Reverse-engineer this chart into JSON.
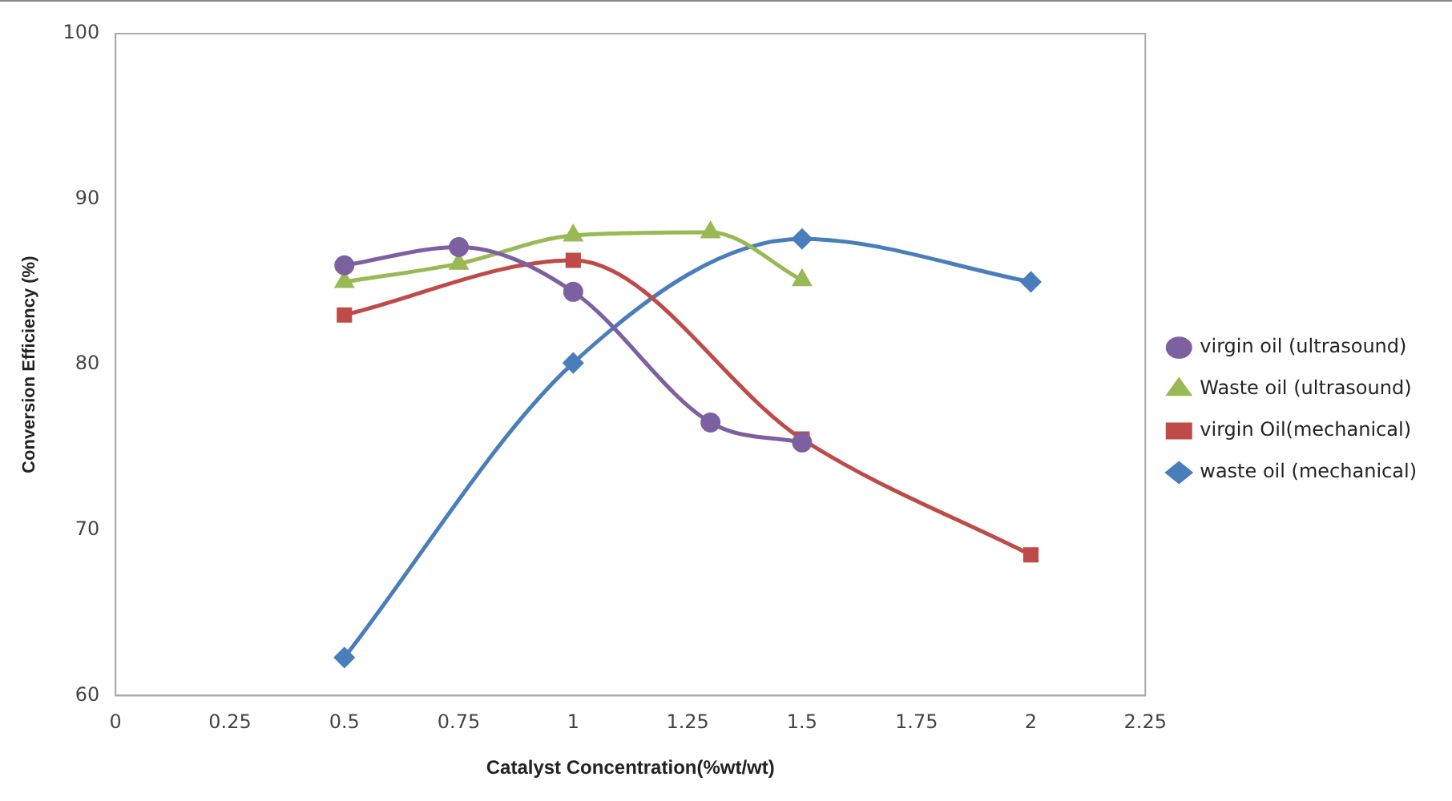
{
  "chart_data": {
    "type": "line",
    "xlabel": "Catalyst Concentration(%wt/wt)",
    "ylabel": "Conversion Efficiency (%)",
    "xlim": [
      0,
      2.25
    ],
    "xticks": [
      0,
      0.25,
      0.5,
      0.75,
      1,
      1.25,
      1.5,
      1.75,
      2,
      2.25
    ],
    "ylim": [
      60,
      100
    ],
    "yticks": [
      60,
      70,
      80,
      90,
      100
    ],
    "grid": false,
    "legend": "right",
    "series": [
      {
        "name": "waste oil (mechanical)",
        "color": "#4a7ebb",
        "marker": "diamond",
        "x": [
          0.5,
          1,
          1.5,
          2
        ],
        "values": [
          62.3,
          80.1,
          87.6,
          85.0
        ]
      },
      {
        "name": "virgin Oil(mechanical)",
        "color": "#be4b48",
        "marker": "square",
        "x": [
          0.5,
          1,
          1.5,
          2
        ],
        "values": [
          83.0,
          86.3,
          75.5,
          68.5
        ]
      },
      {
        "name": "Waste oil (ultrasound)",
        "color": "#98b954",
        "marker": "triangle",
        "x": [
          0.5,
          0.75,
          1,
          1.3,
          1.5
        ],
        "values": [
          85.0,
          86.1,
          87.8,
          88.0,
          85.1
        ]
      },
      {
        "name": "virgin oil (ultrasound)",
        "color": "#7d60a0",
        "marker": "circle",
        "x": [
          0.5,
          0.75,
          1,
          1.3,
          1.5
        ],
        "values": [
          86.0,
          87.1,
          84.4,
          76.5,
          75.3
        ]
      }
    ]
  }
}
